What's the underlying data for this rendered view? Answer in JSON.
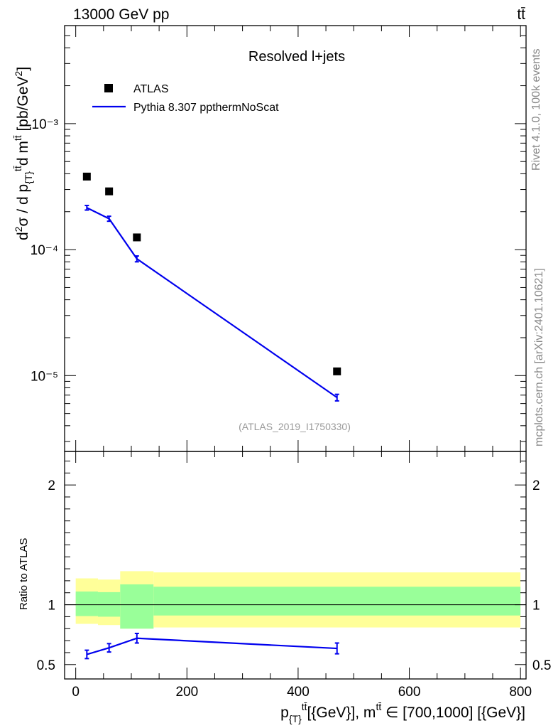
{
  "header": {
    "energy_label": "13000 GeV pp",
    "process_label": "tt̄"
  },
  "side_labels": {
    "rivet": "Rivet 4.1.0,  100k events",
    "mcplots": "mcplots.cern.ch [arXiv:2401.10621]"
  },
  "chart_data": {
    "type": "scatter",
    "title": "Resolved l+jets",
    "analysis_id": "(ATLAS_2019_I1750330)",
    "ylabel": "d²σ / d p_{T}^{tt̄} d m^{tt̄} [pb/GeV²]",
    "xlabel": "p_{T}^{tt̄} [{GeV}], m^{tt̄} ∈ [700,1000] [{GeV}]",
    "xlim": [
      -20,
      810
    ],
    "ylim": [
      2.5e-06,
      0.006
    ],
    "yscale": "log",
    "y_tick_labels": [
      "10⁻⁵",
      "10⁻⁴",
      "10⁻³"
    ],
    "x_tick_labels": [
      "0",
      "200",
      "400",
      "600",
      "800"
    ],
    "bins": [
      [
        0,
        40
      ],
      [
        40,
        80
      ],
      [
        80,
        140
      ],
      [
        140,
        800
      ]
    ],
    "x": [
      20,
      60,
      110,
      470
    ],
    "series": [
      {
        "name": "ATLAS",
        "marker": "square",
        "color": "#000000",
        "values": [
          0.00038,
          0.00029,
          0.000125,
          1.08e-05
        ]
      },
      {
        "name": "Pythia 8.307 ppthermNoScat",
        "marker": "line",
        "color": "#0000ee",
        "values": [
          0.000215,
          0.000176,
          8.45e-05,
          6.7e-06
        ],
        "errors": [
          9e-06,
          8e-06,
          4.5e-06,
          4e-07
        ]
      }
    ],
    "ratio": {
      "ylabel": "Ratio to ATLAS",
      "ylim": [
        0.38,
        2.28
      ],
      "y_tick_labels": [
        "0.5",
        "1",
        "2"
      ],
      "mc_ratio": [
        0.585,
        0.64,
        0.72,
        0.635
      ],
      "mc_ratio_err": [
        0.035,
        0.035,
        0.04,
        0.045
      ],
      "band_inner": [
        [
          0.905,
          1.11
        ],
        [
          0.9,
          1.105
        ],
        [
          0.8,
          1.17
        ],
        [
          0.91,
          1.15
        ]
      ],
      "band_outer": [
        [
          0.84,
          1.22
        ],
        [
          0.83,
          1.21
        ],
        [
          0.8,
          1.28
        ],
        [
          0.81,
          1.27
        ]
      ],
      "inner_color": "#99ff99",
      "outer_color": "#ffff99"
    }
  }
}
